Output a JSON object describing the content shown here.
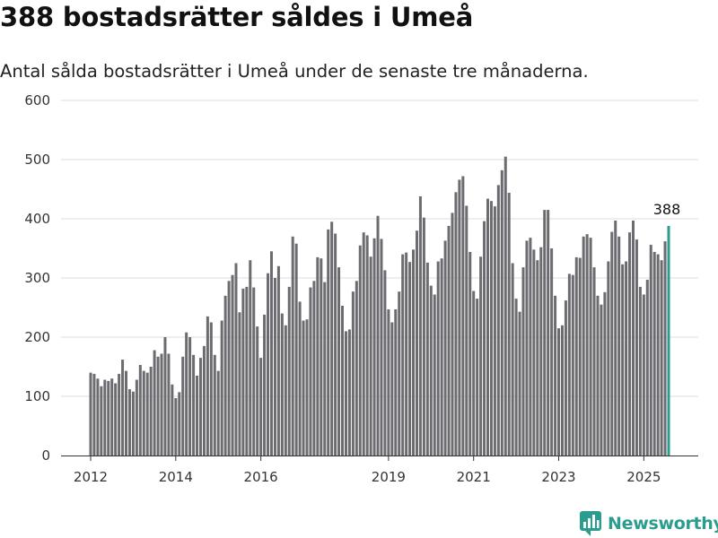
{
  "header": {
    "title": "388 bostadsrätter såldes i Umeå",
    "subtitle": "Antal sålda bostadsrätter i Umeå under de senaste tre månaderna."
  },
  "brand": {
    "name": "Newsworthy",
    "icon": "newsworthy-logo-icon"
  },
  "colors": {
    "bar": "#6b6b70",
    "highlight": "#2a9d8f",
    "grid": "#dddddd",
    "axis": "#333333"
  },
  "chart_data": {
    "type": "bar",
    "title": "388 bostadsrätter såldes i Umeå",
    "subtitle": "Antal sålda bostadsrätter i Umeå under de senaste tre månaderna.",
    "xlabel": "",
    "ylabel": "",
    "ylim": [
      0,
      600
    ],
    "yticks": [
      0,
      100,
      200,
      300,
      400,
      500,
      600
    ],
    "grid": true,
    "xaxis": {
      "start": "2012-01",
      "end": "2025-10",
      "ticks": [
        {
          "label": "2012",
          "date": "2012-01"
        },
        {
          "label": "2014",
          "date": "2014-01"
        },
        {
          "label": "2016",
          "date": "2016-01"
        },
        {
          "label": "2019",
          "date": "2019-01"
        },
        {
          "label": "2021",
          "date": "2021-01"
        },
        {
          "label": "2023",
          "date": "2023-01"
        },
        {
          "label": "2025",
          "date": "2025-01"
        }
      ]
    },
    "highlight_label": "388",
    "series": [
      {
        "values": [
          140,
          138,
          130,
          117,
          128,
          126,
          130,
          122,
          138,
          162,
          143,
          112,
          108,
          128,
          153,
          143,
          140,
          150,
          178,
          167,
          172,
          200,
          172,
          120,
          97,
          107,
          167,
          208,
          200,
          170,
          135,
          165,
          185,
          235,
          225,
          170,
          143,
          228,
          270,
          295,
          305,
          325,
          242,
          282,
          285,
          330,
          284,
          218,
          165,
          238,
          308,
          345,
          300,
          320,
          240,
          220,
          285,
          370,
          358,
          260,
          228,
          230,
          284,
          295,
          335,
          333,
          293,
          382,
          395,
          375,
          318,
          253,
          210,
          213,
          277,
          295,
          355,
          377,
          372,
          336,
          367,
          405,
          366,
          313,
          247,
          225,
          247,
          277,
          340,
          343,
          327,
          348,
          380,
          438,
          402,
          326,
          287,
          272,
          328,
          333,
          363,
          388,
          410,
          445,
          466,
          472,
          422,
          344,
          278,
          265,
          336,
          396,
          434,
          430,
          421,
          457,
          482,
          505,
          444,
          325,
          265,
          243,
          318,
          363,
          368,
          348,
          330,
          352,
          415,
          415,
          350,
          270,
          215,
          220,
          262,
          307,
          305,
          335,
          334,
          370,
          374,
          368,
          318,
          270,
          255,
          276,
          328,
          378,
          397,
          370,
          323,
          328,
          377,
          397,
          365,
          285,
          272,
          297,
          356,
          344,
          340,
          330,
          362,
          388
        ]
      }
    ]
  }
}
